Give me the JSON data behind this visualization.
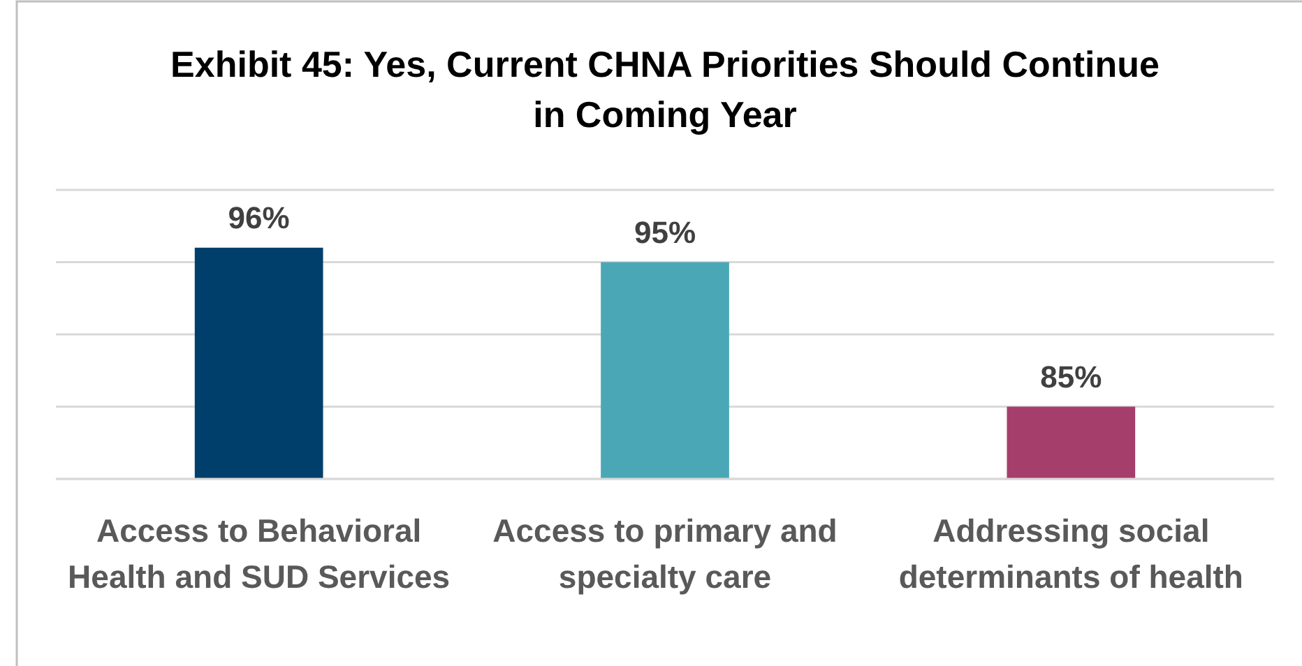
{
  "chart_data": {
    "type": "bar",
    "title": "Exhibit 45: Yes, Current CHNA Priorities Should Continue in Coming Year",
    "categories": [
      "Access to Behavioral Health and SUD Services",
      "Access to primary and specialty care",
      "Addressing social determinants of health"
    ],
    "values": [
      96,
      95,
      85
    ],
    "colors": [
      "#003f6b",
      "#4aa8b6",
      "#a63e6b"
    ],
    "value_labels": [
      "96%",
      "95%",
      "85%"
    ],
    "ylim": [
      80,
      100
    ],
    "yticks": [
      {
        "value": 80,
        "label": null
      },
      {
        "value": 85,
        "label": null
      },
      {
        "value": 90,
        "label": null
      },
      {
        "value": 95,
        "label": null
      },
      {
        "value": 100,
        "label": null
      }
    ],
    "tick_labels": "x",
    "grid": "y"
  }
}
